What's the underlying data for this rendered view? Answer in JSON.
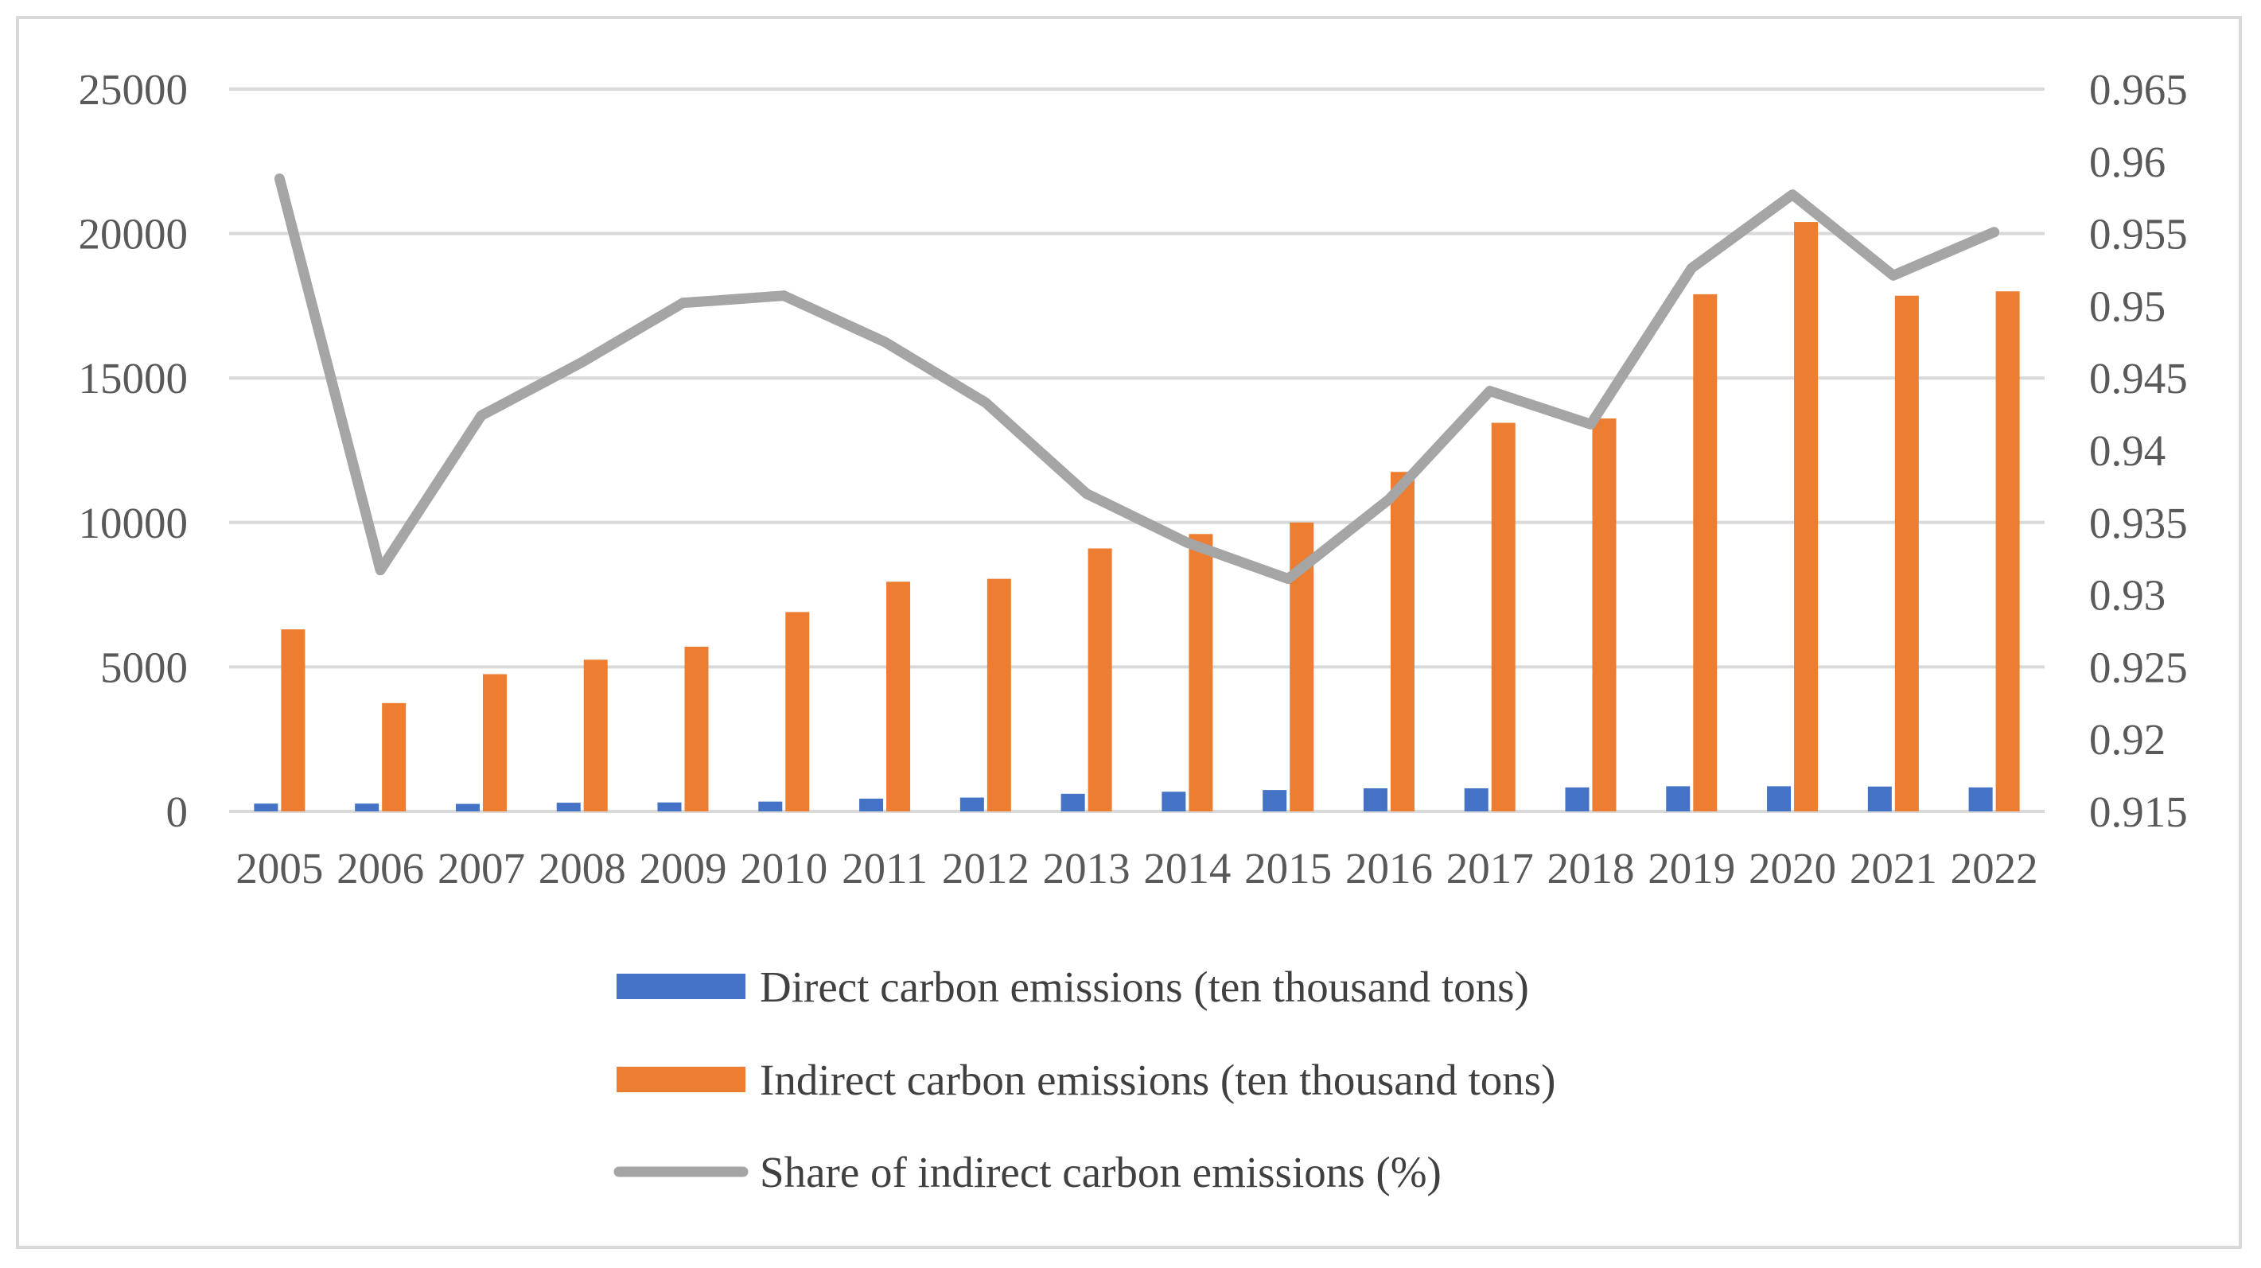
{
  "chart_data": {
    "type": "bar",
    "title": "",
    "categories": [
      "2005",
      "2006",
      "2007",
      "2008",
      "2009",
      "2010",
      "2011",
      "2012",
      "2013",
      "2014",
      "2015",
      "2016",
      "2017",
      "2018",
      "2019",
      "2020",
      "2021",
      "2022"
    ],
    "series": [
      {
        "name": "Direct carbon emissions (ten thousand tons)",
        "type": "bar",
        "axis": "left",
        "color": "#4472c4",
        "values": [
          270,
          270,
          260,
          300,
          310,
          340,
          440,
          480,
          610,
          680,
          740,
          800,
          800,
          830,
          870,
          870,
          860,
          830
        ]
      },
      {
        "name": "Indirect carbon emissions (ten thousand tons)",
        "type": "bar",
        "axis": "left",
        "color": "#ed7d31",
        "values": [
          6300,
          3750,
          4750,
          5250,
          5700,
          6900,
          7950,
          8050,
          9100,
          9600,
          10000,
          11750,
          13450,
          13600,
          17900,
          20400,
          17850,
          18000
        ]
      },
      {
        "name": "Share of indirect carbon emissions (%)",
        "type": "line",
        "axis": "right",
        "color": "#a5a5a5",
        "values": [
          0.9588,
          0.9317,
          0.9424,
          0.9461,
          0.9502,
          0.9507,
          0.9475,
          0.9433,
          0.937,
          0.9336,
          0.9311,
          0.9366,
          0.9441,
          0.9418,
          0.9526,
          0.9577,
          0.9521,
          0.9551
        ]
      }
    ],
    "y_left": {
      "lim": [
        0,
        25000
      ],
      "ticks": [
        0,
        5000,
        10000,
        15000,
        20000,
        25000
      ],
      "tick_labels": [
        "0",
        "5000",
        "10000",
        "15000",
        "20000",
        "25000"
      ]
    },
    "y_right": {
      "lim": [
        0.915,
        0.965
      ],
      "ticks": [
        0.915,
        0.92,
        0.925,
        0.93,
        0.935,
        0.94,
        0.945,
        0.95,
        0.955,
        0.96,
        0.965
      ],
      "tick_labels": [
        "0.915",
        "0.92",
        "0.925",
        "0.93",
        "0.935",
        "0.94",
        "0.945",
        "0.95",
        "0.955",
        "0.96",
        "0.965"
      ]
    },
    "xlabel": "",
    "ylabel": "",
    "grid": true,
    "legend_position": "bottom"
  }
}
